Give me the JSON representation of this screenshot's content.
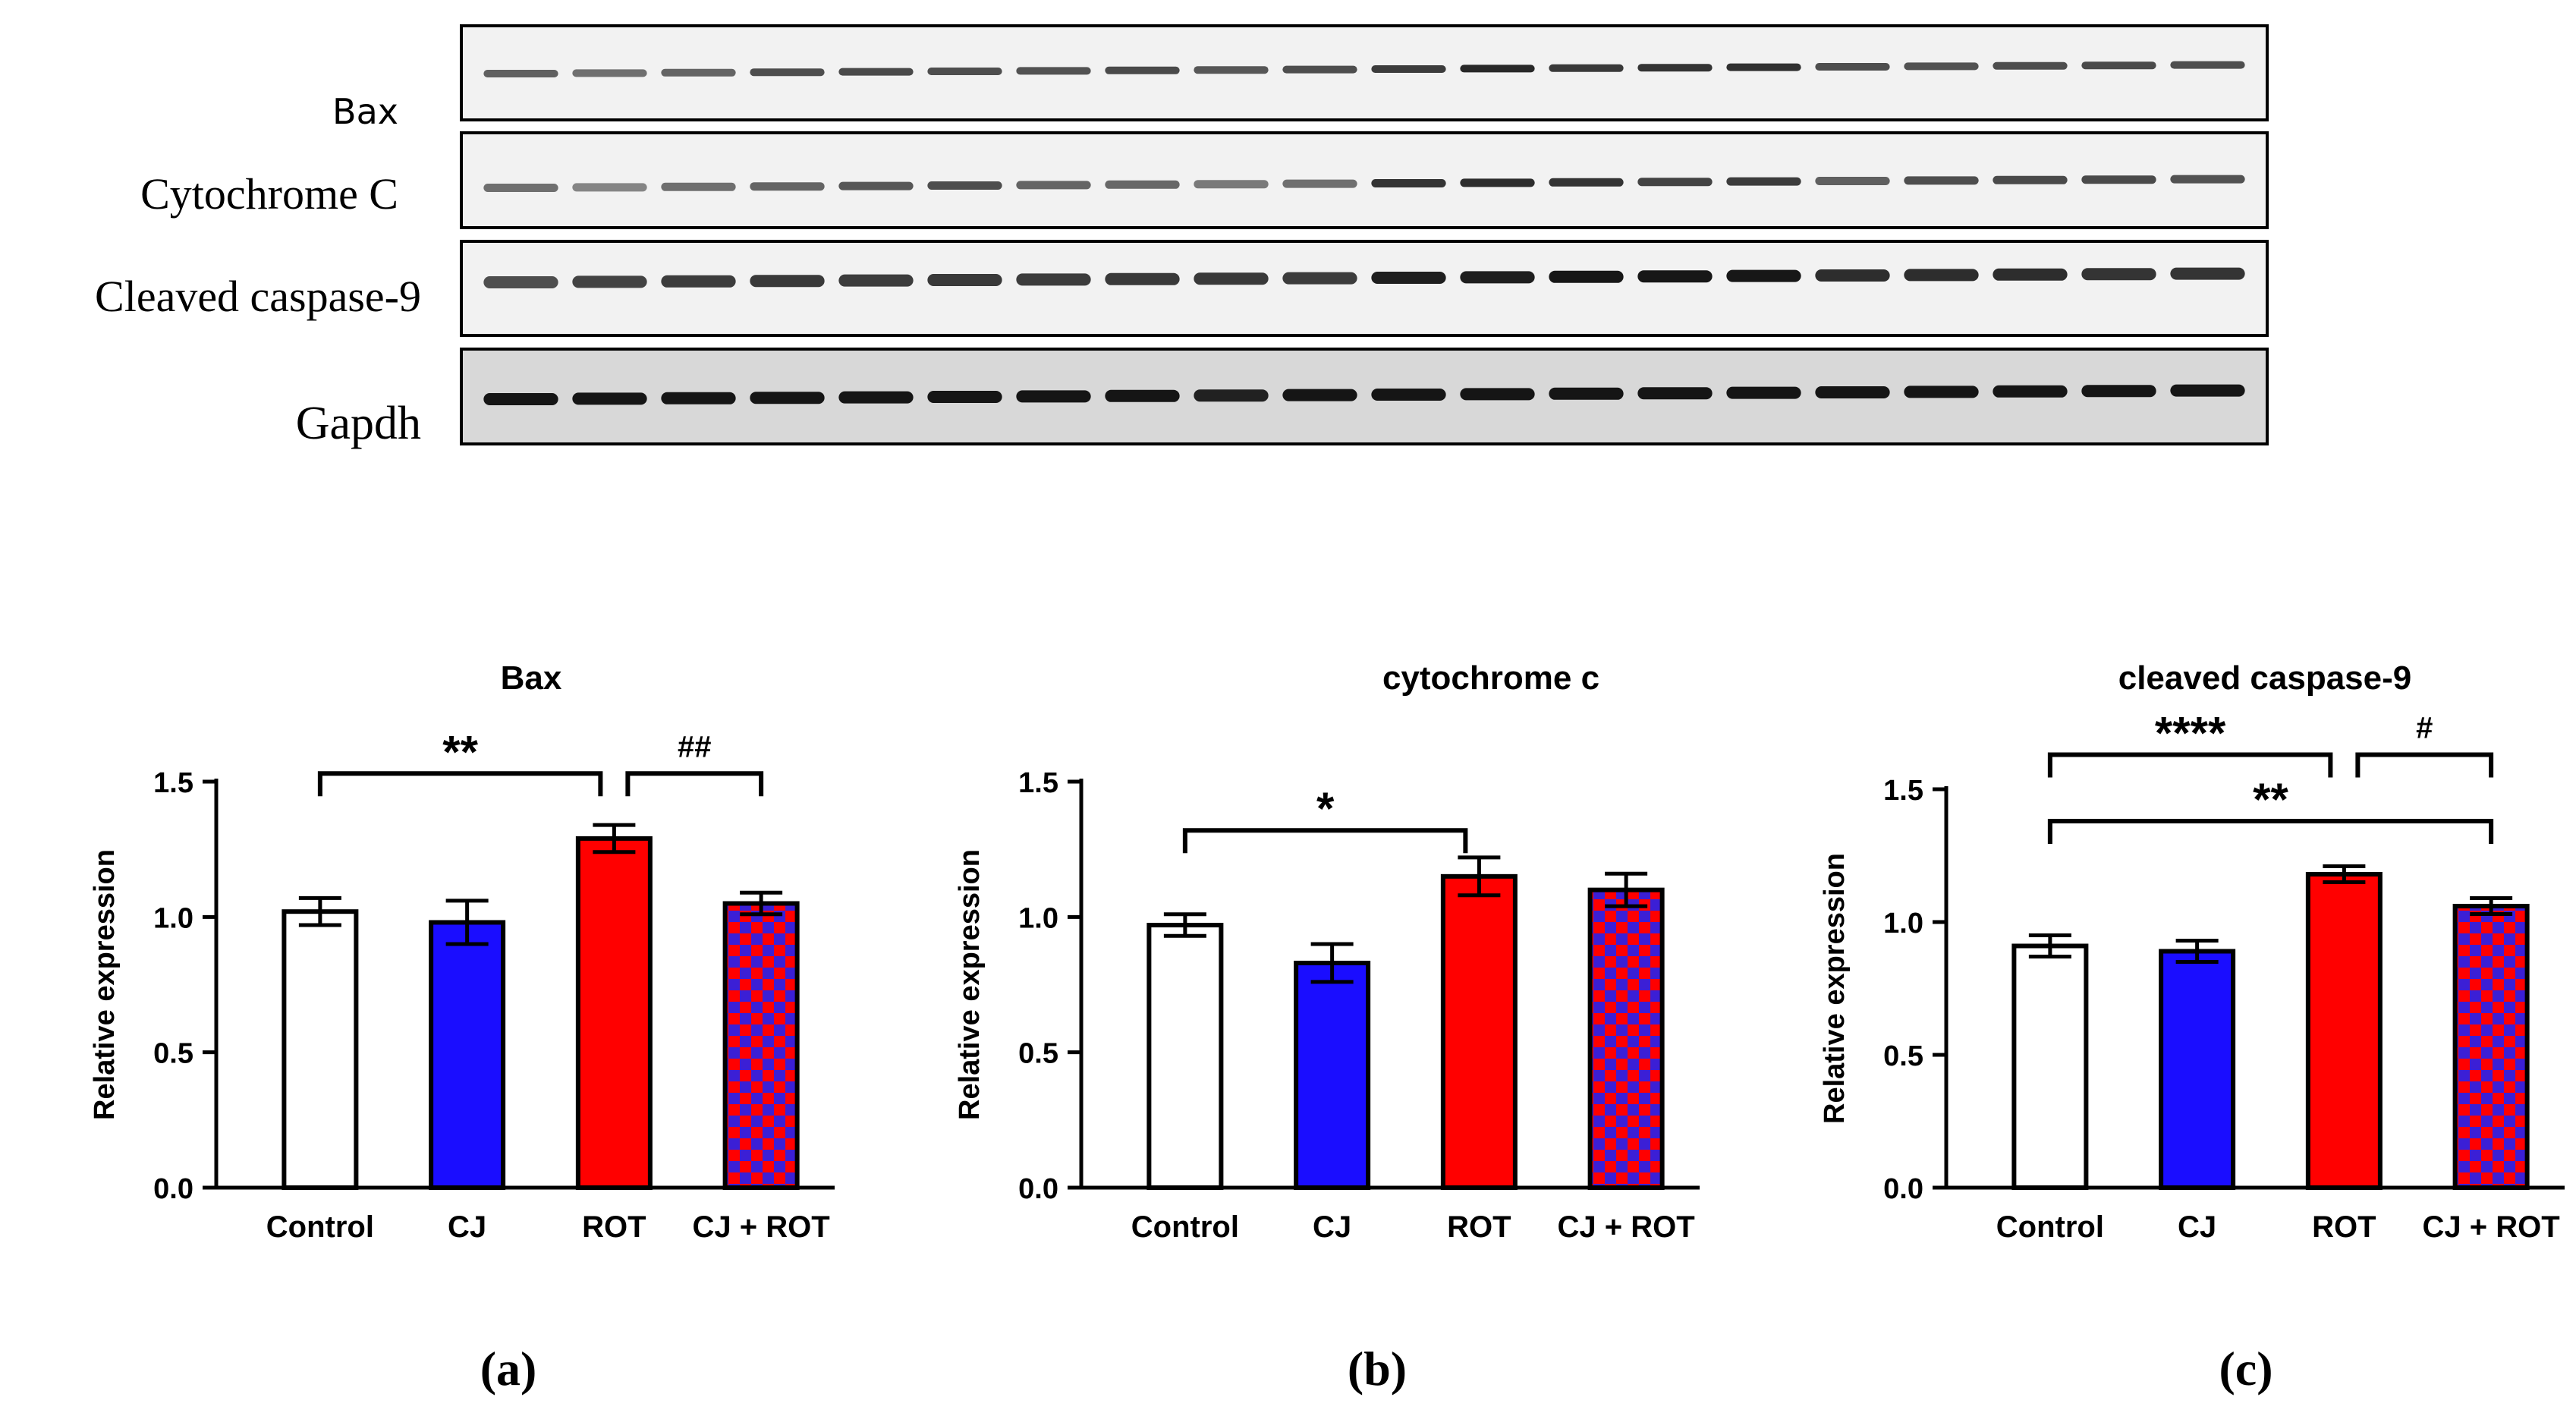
{
  "blot": {
    "lane_count": 20,
    "rows": [
      {
        "label": "Bax"
      },
      {
        "label": "Cytochrome C"
      },
      {
        "label": "Cleaved caspase-9"
      },
      {
        "label": "Gapdh"
      }
    ]
  },
  "colors": {
    "control": "#ffffff",
    "cj": "#1a0dff",
    "rot": "#ff0000",
    "checker_a": "#ff0000",
    "checker_b": "#3b1fd6",
    "axis": "#000000",
    "blot_background": "#f2f2f2",
    "gapdh_background": "#d8d8d8"
  },
  "chart_data": [
    {
      "type": "bar",
      "title": "Bax",
      "ylabel": "Relative expression",
      "categories": [
        "Control",
        "CJ",
        "ROT",
        "CJ + ROT"
      ],
      "values": [
        1.02,
        0.98,
        1.29,
        1.05
      ],
      "errors": [
        0.05,
        0.08,
        0.05,
        0.04
      ],
      "ylim": [
        0,
        1.5
      ],
      "yticks": [
        "0.0",
        "0.5",
        "1.0",
        "1.5"
      ],
      "significance": [
        {
          "from": 0,
          "to": 2,
          "y": 1.53,
          "label": "**"
        },
        {
          "from": 2,
          "to": 3,
          "y": 1.53,
          "label": "##"
        }
      ],
      "panel_label": "(a)"
    },
    {
      "type": "bar",
      "title": "cytochrome c",
      "ylabel": "Relative expression",
      "categories": [
        "Control",
        "CJ",
        "ROT",
        "CJ + ROT"
      ],
      "values": [
        0.97,
        0.83,
        1.15,
        1.1
      ],
      "errors": [
        0.04,
        0.07,
        0.07,
        0.06
      ],
      "ylim": [
        0,
        1.5
      ],
      "yticks": [
        "0.0",
        "0.5",
        "1.0",
        "1.5"
      ],
      "significance": [
        {
          "from": 0,
          "to": 2,
          "y": 1.32,
          "label": "*"
        }
      ],
      "panel_label": "(b)"
    },
    {
      "type": "bar",
      "title": "cleaved caspase-9",
      "ylabel": "Relative expression",
      "categories": [
        "Control",
        "CJ",
        "ROT",
        "CJ + ROT"
      ],
      "values": [
        0.91,
        0.89,
        1.18,
        1.06
      ],
      "errors": [
        0.04,
        0.04,
        0.03,
        0.03
      ],
      "ylim": [
        0,
        1.5
      ],
      "yticks": [
        "0.0",
        "0.5",
        "1.0",
        "1.5"
      ],
      "significance": [
        {
          "from": 0,
          "to": 2,
          "y": 1.63,
          "label": "****"
        },
        {
          "from": 2,
          "to": 3,
          "y": 1.63,
          "label": "#"
        },
        {
          "from": 0,
          "to": 3,
          "y": 1.38,
          "label": "**"
        }
      ],
      "panel_label": "(c)"
    }
  ]
}
